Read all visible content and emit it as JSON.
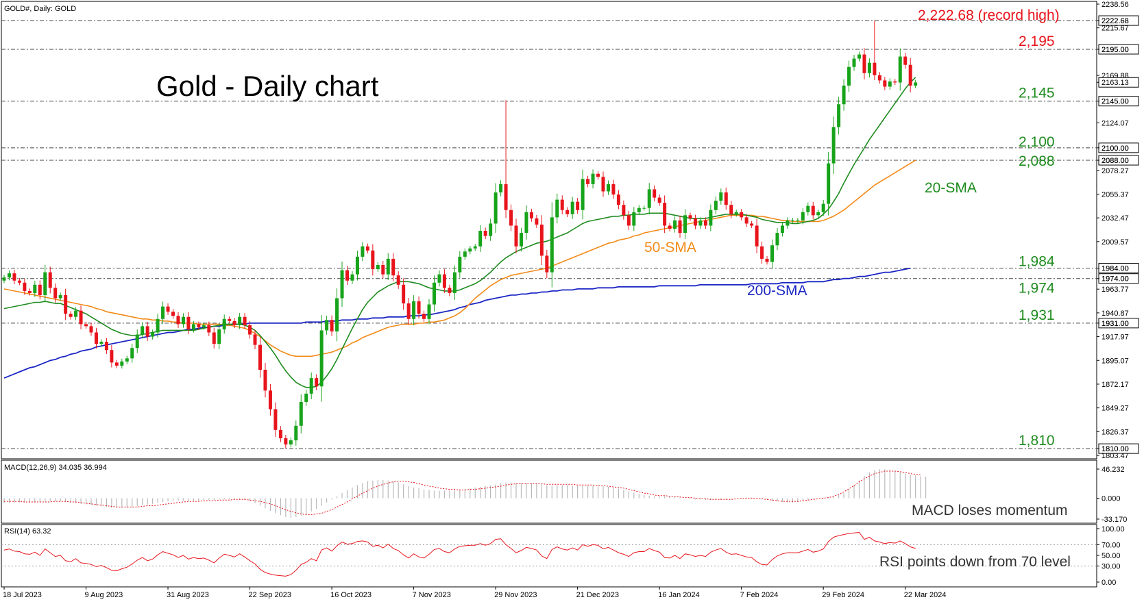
{
  "header": {
    "symbol_info": "GOLD#, Daily:  GOLD"
  },
  "chart_title": "Gold - Daily chart",
  "colors": {
    "bull": "#17a31a",
    "bear": "#e8141c",
    "sma20": "#1e8b1e",
    "sma50": "#f28a17",
    "sma200": "#1b26c4",
    "level_red": "#e8141c",
    "level_green": "#1e8b1e",
    "macd_signal": "#e8141c",
    "rsi_line": "#e8141c",
    "grid_line": "#444444"
  },
  "chart_data": [
    {
      "type": "candlestick",
      "title": "Gold - Daily chart",
      "ylim": [
        1803.47,
        2238.56
      ],
      "y_ticks": [
        "2238.56",
        "2222.68",
        "2215.67",
        "2195.00",
        "2169.88",
        "2163.13",
        "2145.00",
        "2124.07",
        "2100.00",
        "2088.00",
        "2078.27",
        "2055.37",
        "2032.47",
        "2009.57",
        "1984.00",
        "1974.00",
        "1963.77",
        "1940.87",
        "1931.00",
        "1917.97",
        "1895.07",
        "1872.17",
        "1849.27",
        "1826.37",
        "1810.00",
        "1803.47"
      ],
      "x_tick_labels": [
        "18 Jul 2023",
        "9 Aug 2023",
        "31 Aug 2023",
        "22 Sep 2023",
        "16 Oct 2023",
        "7 Nov 2023",
        "29 Nov 2023",
        "21 Dec 2023",
        "16 Jan 2024",
        "7 Feb 2024",
        "29 Feb 2024",
        "22 Mar 2024"
      ],
      "x_tick_index": [
        0,
        16,
        32,
        48,
        64,
        80,
        96,
        112,
        128,
        144,
        160,
        176
      ],
      "close": [
        1975,
        1979,
        1972,
        1970,
        1962,
        1960,
        1968,
        1958,
        1980,
        1965,
        1955,
        1958,
        1940,
        1937,
        1943,
        1930,
        1928,
        1922,
        1911,
        1913,
        1905,
        1893,
        1890,
        1894,
        1897,
        1907,
        1920,
        1928,
        1918,
        1922,
        1935,
        1947,
        1942,
        1938,
        1930,
        1937,
        1925,
        1930,
        1927,
        1929,
        1922,
        1911,
        1925,
        1935,
        1933,
        1929,
        1937,
        1929,
        1920,
        1910,
        1886,
        1866,
        1848,
        1828,
        1820,
        1814,
        1818,
        1832,
        1855,
        1863,
        1878,
        1870,
        1924,
        1934,
        1923,
        1955,
        1982,
        1972,
        1978,
        1995,
        2005,
        2001,
        1983,
        1987,
        1978,
        1993,
        1977,
        1968,
        1950,
        1935,
        1952,
        1940,
        1935,
        1949,
        1970,
        1978,
        1965,
        1960,
        1980,
        1995,
        2000,
        2003,
        2005,
        2020,
        2015,
        2027,
        2057,
        2065,
        2040,
        2025,
        2005,
        2018,
        2038,
        2032,
        2026,
        1996,
        1980,
        2033,
        2050,
        2040,
        2036,
        2048,
        2040,
        2070,
        2065,
        2075,
        2072,
        2058,
        2065,
        2055,
        2045,
        2035,
        2025,
        2038,
        2042,
        2042,
        2060,
        2052,
        2047,
        2025,
        2022,
        2030,
        2018,
        2035,
        2032,
        2025,
        2030,
        2025,
        2040,
        2049,
        2057,
        2045,
        2036,
        2038,
        2033,
        2027,
        2025,
        2005,
        1993,
        1990,
        2006,
        2018,
        2025,
        2030,
        2030,
        2030,
        2038,
        2044,
        2035,
        2038,
        2046,
        2085,
        2120,
        2142,
        2160,
        2178,
        2186,
        2190,
        2172,
        2182,
        2170,
        2165,
        2159,
        2164,
        2163,
        2188,
        2180,
        2160,
        2163
      ],
      "sma20": [
        1945,
        1946,
        1947,
        1948,
        1949,
        1950,
        1951,
        1951,
        1952,
        1951,
        1950,
        1950,
        1948,
        1946,
        1944,
        1942,
        1940,
        1937,
        1934,
        1931,
        1928,
        1925,
        1923,
        1921,
        1920,
        1919,
        1919,
        1920,
        1921,
        1922,
        1923,
        1924,
        1924,
        1924,
        1924,
        1924,
        1924,
        1924,
        1925,
        1926,
        1927,
        1928,
        1929,
        1930,
        1930,
        1930,
        1930,
        1929,
        1927,
        1924,
        1919,
        1913,
        1907,
        1900,
        1892,
        1885,
        1879,
        1874,
        1871,
        1869,
        1869,
        1870,
        1874,
        1880,
        1887,
        1896,
        1906,
        1916,
        1926,
        1935,
        1944,
        1951,
        1956,
        1961,
        1964,
        1967,
        1969,
        1971,
        1971,
        1971,
        1970,
        1969,
        1967,
        1965,
        1964,
        1963,
        1962,
        1962,
        1962,
        1963,
        1965,
        1967,
        1969,
        1972,
        1976,
        1980,
        1985,
        1990,
        1994,
        1997,
        2000,
        2002,
        2004,
        2006,
        2008,
        2009,
        2010,
        2012,
        2014,
        2016,
        2018,
        2021,
        2024,
        2027,
        2029,
        2030,
        2031,
        2032,
        2033,
        2034,
        2034,
        2035,
        2035,
        2036,
        2036,
        2036,
        2037,
        2037,
        2037,
        2037,
        2036,
        2035,
        2034,
        2033,
        2032,
        2032,
        2032,
        2032,
        2033,
        2034,
        2035,
        2036,
        2036,
        2036,
        2036,
        2035,
        2034,
        2033,
        2031,
        2030,
        2029,
        2028,
        2028,
        2028,
        2027,
        2027,
        2028,
        2029,
        2030,
        2032,
        2036,
        2041,
        2048,
        2056,
        2066,
        2075,
        2084,
        2092,
        2100,
        2108,
        2115,
        2122,
        2129,
        2136,
        2143,
        2150,
        2157,
        2163,
        2168
      ],
      "sma50": [
        1964,
        1963,
        1962,
        1961,
        1960,
        1959,
        1958,
        1957,
        1956,
        1955,
        1954,
        1953,
        1952,
        1951,
        1950,
        1949,
        1948,
        1947,
        1945,
        1944,
        1942,
        1941,
        1940,
        1939,
        1938,
        1937,
        1936,
        1935,
        1935,
        1934,
        1934,
        1933,
        1933,
        1932,
        1932,
        1931,
        1931,
        1931,
        1930,
        1930,
        1930,
        1930,
        1930,
        1929,
        1929,
        1928,
        1927,
        1926,
        1924,
        1921,
        1918,
        1914,
        1910,
        1907,
        1904,
        1902,
        1900,
        1899,
        1899,
        1899,
        1899,
        1900,
        1901,
        1902,
        1903,
        1905,
        1907,
        1909,
        1912,
        1914,
        1917,
        1919,
        1921,
        1923,
        1925,
        1927,
        1928,
        1929,
        1930,
        1930,
        1930,
        1931,
        1931,
        1932,
        1932,
        1933,
        1934,
        1936,
        1938,
        1941,
        1945,
        1950,
        1955,
        1959,
        1963,
        1967,
        1970,
        1973,
        1975,
        1977,
        1978,
        1979,
        1980,
        1981,
        1982,
        1983,
        1984,
        1986,
        1988,
        1990,
        1992,
        1994,
        1996,
        1998,
        2000,
        2002,
        2004,
        2006,
        2008,
        2009,
        2011,
        2012,
        2013,
        2015,
        2016,
        2018,
        2019,
        2020,
        2021,
        2022,
        2023,
        2024,
        2025,
        2026,
        2027,
        2028,
        2029,
        2030,
        2031,
        2032,
        2033,
        2034,
        2035,
        2035,
        2035,
        2035,
        2035,
        2034,
        2034,
        2033,
        2032,
        2031,
        2030,
        2030,
        2029,
        2029,
        2029,
        2029,
        2029,
        2029,
        2030,
        2032,
        2034,
        2037,
        2040,
        2044,
        2048,
        2052,
        2056,
        2060,
        2064,
        2067,
        2070,
        2073,
        2076,
        2079,
        2082,
        2085,
        2088
      ],
      "sma200": [
        1878,
        1880,
        1882,
        1884,
        1886,
        1888,
        1889,
        1891,
        1893,
        1895,
        1896,
        1898,
        1899,
        1901,
        1902,
        1904,
        1905,
        1906,
        1908,
        1909,
        1910,
        1911,
        1912,
        1913,
        1914,
        1915,
        1916,
        1917,
        1918,
        1919,
        1920,
        1921,
        1922,
        1922,
        1923,
        1924,
        1925,
        1925,
        1926,
        1927,
        1927,
        1928,
        1928,
        1929,
        1929,
        1930,
        1930,
        1930,
        1931,
        1931,
        1931,
        1931,
        1931,
        1931,
        1931,
        1931,
        1931,
        1931,
        1931,
        1932,
        1932,
        1932,
        1932,
        1933,
        1933,
        1933,
        1934,
        1934,
        1934,
        1935,
        1935,
        1935,
        1936,
        1936,
        1936,
        1937,
        1937,
        1937,
        1937,
        1938,
        1938,
        1938,
        1939,
        1939,
        1940,
        1941,
        1942,
        1943,
        1944,
        1946,
        1947,
        1949,
        1950,
        1951,
        1953,
        1954,
        1955,
        1956,
        1957,
        1958,
        1958,
        1959,
        1959,
        1960,
        1960,
        1961,
        1961,
        1962,
        1962,
        1963,
        1963,
        1963,
        1964,
        1964,
        1964,
        1964,
        1965,
        1965,
        1965,
        1965,
        1966,
        1966,
        1966,
        1966,
        1966,
        1966,
        1966,
        1966,
        1967,
        1967,
        1967,
        1967,
        1967,
        1967,
        1967,
        1967,
        1968,
        1968,
        1968,
        1968,
        1968,
        1968,
        1968,
        1968,
        1968,
        1968,
        1969,
        1969,
        1969,
        1969,
        1969,
        1969,
        1970,
        1970,
        1970,
        1970,
        1970,
        1971,
        1971,
        1971,
        1971,
        1972,
        1973,
        1973,
        1974,
        1974,
        1975,
        1976,
        1976,
        1977,
        1978,
        1979,
        1980,
        1980,
        1981,
        1982,
        1983,
        1984
      ],
      "levels": [
        {
          "value": 2222.68,
          "label": "2,222.68 (record high)",
          "color": "red"
        },
        {
          "value": 2195,
          "label": "2,195",
          "color": "red"
        },
        {
          "value": 2145,
          "label": "2,145",
          "color": "green"
        },
        {
          "value": 2100,
          "label": "2,100",
          "color": "green"
        },
        {
          "value": 2088,
          "label": "2,088",
          "color": "green"
        },
        {
          "value": 1984,
          "label": "1,984",
          "color": "green"
        },
        {
          "value": 1974,
          "label": "1,974",
          "color": "green"
        },
        {
          "value": 1931,
          "label": "1,931",
          "color": "green"
        },
        {
          "value": 1810,
          "label": "1,810",
          "color": "green"
        }
      ],
      "annotations": {
        "sma20": "20-SMA",
        "sma50": "50-SMA",
        "sma200": "200-SMA"
      },
      "last_price": "2163.13"
    },
    {
      "type": "bar",
      "title": "MACD(12,26,9) 34.035 36.994",
      "ylim": [
        -33.17,
        46.232
      ],
      "y_ticks": [
        "46.232",
        "0.000",
        "-33.170"
      ],
      "annotation": "MACD loses momentum",
      "histogram": [
        -8,
        -8,
        -7,
        -7,
        -7,
        -7,
        -6,
        -6,
        -5,
        -5,
        -5,
        -5,
        -6,
        -7,
        -8,
        -9,
        -10,
        -11,
        -12,
        -13,
        -14,
        -15,
        -15,
        -15,
        -15,
        -14,
        -13,
        -11,
        -10,
        -9,
        -7,
        -6,
        -5,
        -4,
        -4,
        -4,
        -4,
        -4,
        -4,
        -3,
        -3,
        -3,
        -2,
        -2,
        -2,
        -2,
        -2,
        -3,
        -5,
        -8,
        -12,
        -16,
        -20,
        -24,
        -27,
        -30,
        -31,
        -30,
        -28,
        -25,
        -21,
        -17,
        -12,
        -7,
        -2,
        3,
        8,
        13,
        17,
        21,
        24,
        27,
        28,
        29,
        29,
        28,
        27,
        25,
        22,
        19,
        17,
        16,
        14,
        13,
        12,
        12,
        12,
        12,
        13,
        14,
        15,
        16,
        17,
        18,
        19,
        20,
        22,
        24,
        25,
        25,
        24,
        24,
        24,
        24,
        23,
        22,
        20,
        20,
        21,
        21,
        21,
        20,
        20,
        20,
        20,
        20,
        20,
        19,
        18,
        17,
        15,
        13,
        11,
        9,
        7,
        5,
        4,
        3,
        3,
        3,
        3,
        2,
        1,
        0,
        -1,
        -2,
        -2,
        -3,
        -3,
        -3,
        -3,
        -2,
        -1,
        0,
        1,
        1,
        1,
        0,
        -1,
        -2,
        -4,
        -5,
        -6,
        -7,
        -7,
        -6,
        -5,
        -3,
        -1,
        0,
        1,
        2,
        3,
        5,
        8,
        14,
        21,
        28,
        35,
        41,
        45,
        46,
        46,
        45,
        43,
        41,
        39,
        37,
        36,
        35,
        34
      ],
      "signal": [
        -5,
        -5,
        -5,
        -5,
        -6,
        -6,
        -6,
        -6,
        -6,
        -6,
        -5,
        -5,
        -5,
        -6,
        -6,
        -7,
        -8,
        -9,
        -10,
        -11,
        -12,
        -13,
        -14,
        -14,
        -14,
        -14,
        -14,
        -13,
        -12,
        -12,
        -11,
        -10,
        -9,
        -8,
        -7,
        -6,
        -5,
        -5,
        -5,
        -4,
        -4,
        -4,
        -3,
        -3,
        -3,
        -2,
        -2,
        -2,
        -3,
        -4,
        -5,
        -7,
        -9,
        -12,
        -15,
        -18,
        -21,
        -23,
        -25,
        -26,
        -26,
        -25,
        -24,
        -21,
        -18,
        -14,
        -10,
        -6,
        -1,
        3,
        8,
        12,
        16,
        19,
        22,
        24,
        26,
        27,
        27,
        26,
        25,
        23,
        21,
        19,
        18,
        16,
        15,
        14,
        14,
        13,
        13,
        14,
        14,
        15,
        16,
        17,
        18,
        19,
        21,
        22,
        23,
        23,
        23,
        23,
        23,
        23,
        22,
        22,
        22,
        22,
        22,
        22,
        21,
        21,
        21,
        21,
        20,
        20,
        19,
        18,
        17,
        16,
        14,
        12,
        10,
        8,
        7,
        5,
        4,
        4,
        3,
        3,
        2,
        1,
        1,
        0,
        -1,
        -1,
        -2,
        -2,
        -2,
        -2,
        -2,
        -1,
        -1,
        0,
        0,
        0,
        -1,
        -2,
        -3,
        -4,
        -5,
        -5,
        -5,
        -5,
        -4,
        -3,
        -2,
        -1,
        0,
        1,
        3,
        6,
        10,
        15,
        20,
        26,
        31,
        35,
        39,
        41,
        43,
        43,
        43,
        42,
        41,
        39,
        38,
        37
      ]
    },
    {
      "type": "line",
      "title": "RSI(14) 63.32",
      "ylim": [
        0,
        100
      ],
      "y_ticks": [
        "100.00",
        "70.00",
        "50.00",
        "30.00",
        "0.00"
      ],
      "annotation": "RSI points down from 70 level",
      "values": [
        60,
        62,
        58,
        57,
        53,
        52,
        56,
        50,
        62,
        55,
        48,
        50,
        40,
        38,
        44,
        36,
        35,
        33,
        29,
        31,
        27,
        22,
        21,
        25,
        28,
        34,
        41,
        46,
        40,
        43,
        51,
        57,
        54,
        51,
        46,
        50,
        43,
        46,
        44,
        45,
        41,
        36,
        45,
        52,
        50,
        47,
        53,
        47,
        40,
        34,
        24,
        18,
        15,
        13,
        12,
        11,
        14,
        22,
        33,
        37,
        44,
        40,
        60,
        64,
        58,
        68,
        75,
        71,
        72,
        76,
        77,
        75,
        67,
        69,
        64,
        71,
        63,
        59,
        51,
        45,
        53,
        47,
        45,
        52,
        61,
        63,
        57,
        55,
        62,
        67,
        68,
        69,
        69,
        72,
        69,
        72,
        80,
        81,
        70,
        63,
        55,
        59,
        65,
        63,
        60,
        49,
        44,
        61,
        66,
        62,
        60,
        64,
        60,
        70,
        67,
        70,
        69,
        62,
        65,
        60,
        55,
        52,
        48,
        55,
        57,
        57,
        63,
        59,
        56,
        46,
        45,
        50,
        44,
        53,
        51,
        48,
        50,
        48,
        56,
        60,
        63,
        56,
        52,
        53,
        50,
        47,
        46,
        38,
        33,
        32,
        42,
        49,
        53,
        55,
        55,
        55,
        58,
        61,
        56,
        58,
        62,
        76,
        84,
        87,
        89,
        91,
        92,
        93,
        80,
        84,
        77,
        75,
        72,
        74,
        73,
        77,
        72,
        66,
        63
      ],
      "levels": [
        70,
        30
      ]
    }
  ]
}
